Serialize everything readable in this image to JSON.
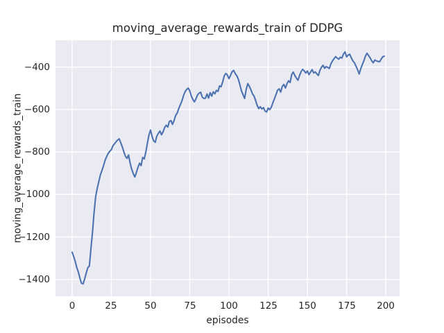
{
  "figure": {
    "background": "#ffffff"
  },
  "chart_data": {
    "type": "line",
    "title": "moving_average_rewards_train of DDPG",
    "xlabel": "episodes",
    "ylabel": "moving_average_rewards_train",
    "xlim": [
      -10.6,
      208.8
    ],
    "ylim": [
      -1479,
      -274
    ],
    "xticks": [
      0,
      25,
      50,
      75,
      100,
      125,
      150,
      175,
      200
    ],
    "xtick_labels": [
      "0",
      "25",
      "50",
      "75",
      "100",
      "125",
      "150",
      "175",
      "200"
    ],
    "yticks": [
      -400,
      -600,
      -800,
      -1000,
      -1200,
      -1400
    ],
    "ytick_labels": [
      "−400",
      "−600",
      "−800",
      "−1000",
      "−1200",
      "−1400"
    ],
    "grid": true,
    "legend": "none",
    "style": {
      "axes_background": "#eaeaf2",
      "grid_color": "#ffffff",
      "grid_width": 1.4,
      "line_color": "#4c72b0",
      "line_width": 2.1,
      "text_color": "#262626"
    },
    "series": [
      {
        "name": "moving_average_rewards_train",
        "x_start": 0,
        "x_step": 1,
        "values": [
          -1272,
          -1292,
          -1316,
          -1344,
          -1366,
          -1395,
          -1418,
          -1421,
          -1398,
          -1370,
          -1344,
          -1337,
          -1255,
          -1175,
          -1085,
          -1010,
          -972,
          -940,
          -908,
          -888,
          -865,
          -840,
          -822,
          -806,
          -797,
          -789,
          -771,
          -762,
          -752,
          -744,
          -738,
          -756,
          -776,
          -800,
          -820,
          -830,
          -814,
          -853,
          -882,
          -902,
          -918,
          -895,
          -872,
          -853,
          -864,
          -826,
          -832,
          -800,
          -758,
          -720,
          -697,
          -728,
          -748,
          -754,
          -726,
          -712,
          -701,
          -719,
          -705,
          -685,
          -674,
          -683,
          -656,
          -652,
          -670,
          -652,
          -628,
          -617,
          -595,
          -577,
          -560,
          -535,
          -517,
          -506,
          -499,
          -512,
          -537,
          -553,
          -564,
          -549,
          -531,
          -523,
          -519,
          -542,
          -548,
          -547,
          -527,
          -546,
          -521,
          -537,
          -517,
          -526,
          -510,
          -515,
          -489,
          -493,
          -470,
          -441,
          -430,
          -438,
          -455,
          -439,
          -422,
          -416,
          -431,
          -441,
          -458,
          -485,
          -513,
          -531,
          -548,
          -505,
          -478,
          -491,
          -507,
          -526,
          -537,
          -558,
          -581,
          -596,
          -587,
          -598,
          -591,
          -607,
          -612,
          -593,
          -601,
          -589,
          -569,
          -549,
          -529,
          -509,
          -503,
          -518,
          -491,
          -482,
          -499,
          -478,
          -465,
          -473,
          -435,
          -424,
          -440,
          -452,
          -462,
          -440,
          -422,
          -411,
          -418,
          -428,
          -419,
          -436,
          -424,
          -412,
          -428,
          -423,
          -432,
          -440,
          -415,
          -401,
          -392,
          -406,
          -398,
          -402,
          -407,
          -385,
          -372,
          -361,
          -351,
          -358,
          -363,
          -354,
          -358,
          -339,
          -329,
          -352,
          -344,
          -340,
          -357,
          -371,
          -380,
          -396,
          -412,
          -433,
          -409,
          -389,
          -371,
          -349,
          -335,
          -346,
          -357,
          -371,
          -380,
          -367,
          -371,
          -374,
          -375,
          -364,
          -352,
          -349
        ]
      }
    ]
  }
}
